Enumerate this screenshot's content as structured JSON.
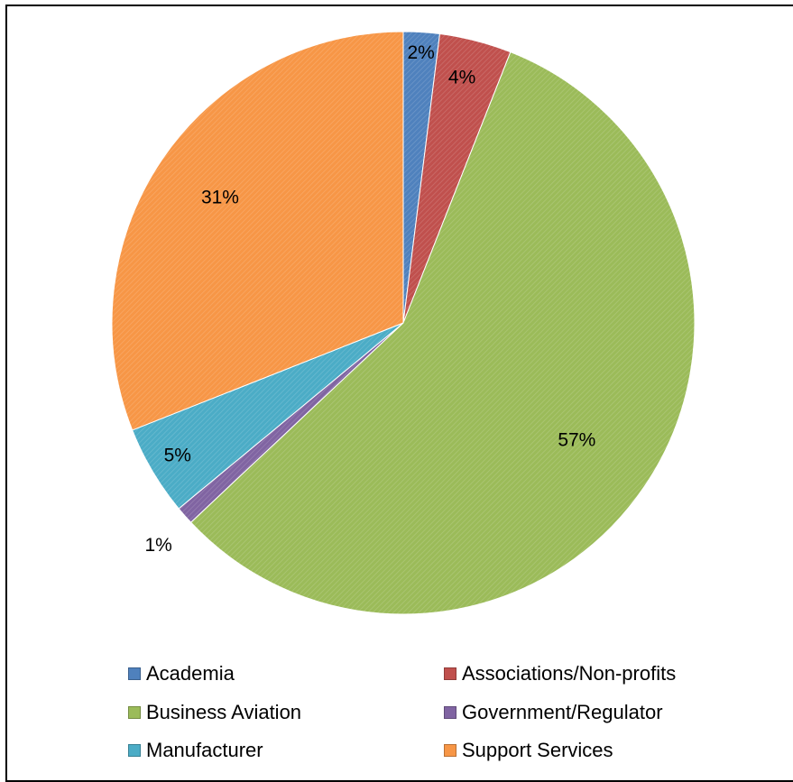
{
  "chart_data": {
    "type": "pie",
    "categories": [
      "Academia",
      "Associations/Non-profits",
      "Business Aviation",
      "Government/Regulator",
      "Manufacturer",
      "Support Services"
    ],
    "values": [
      2,
      4,
      57,
      1,
      5,
      31
    ],
    "data_labels": [
      "2%",
      "4%",
      "57%",
      "1%",
      "5%",
      "31%"
    ],
    "colors": [
      "#4f81bd",
      "#c0504d",
      "#9bbb59",
      "#8064a2",
      "#4bacc6",
      "#f79646"
    ],
    "title": "",
    "legend_position": "bottom",
    "start_angle": "12 o'clock",
    "direction": "clockwise"
  }
}
